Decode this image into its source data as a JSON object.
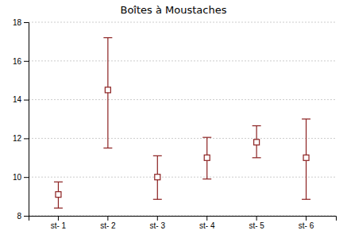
{
  "chart_data": {
    "type": "errorbar",
    "title": "Boîtes à Moustaches",
    "categories": [
      "st- 1",
      "st- 2",
      "st- 3",
      "st- 4",
      "st- 5",
      "st- 6"
    ],
    "values": [
      9.1,
      14.5,
      10.0,
      11.0,
      11.8,
      11.0
    ],
    "lower": [
      8.4,
      11.5,
      8.85,
      9.9,
      11.0,
      8.85
    ],
    "upper": [
      9.75,
      17.2,
      11.1,
      12.05,
      12.65,
      13.0
    ],
    "color": "#8B2020",
    "marker": "square",
    "ylim": [
      8,
      18
    ],
    "yticks": [
      8,
      10,
      12,
      14,
      16,
      18
    ],
    "grid": true
  }
}
